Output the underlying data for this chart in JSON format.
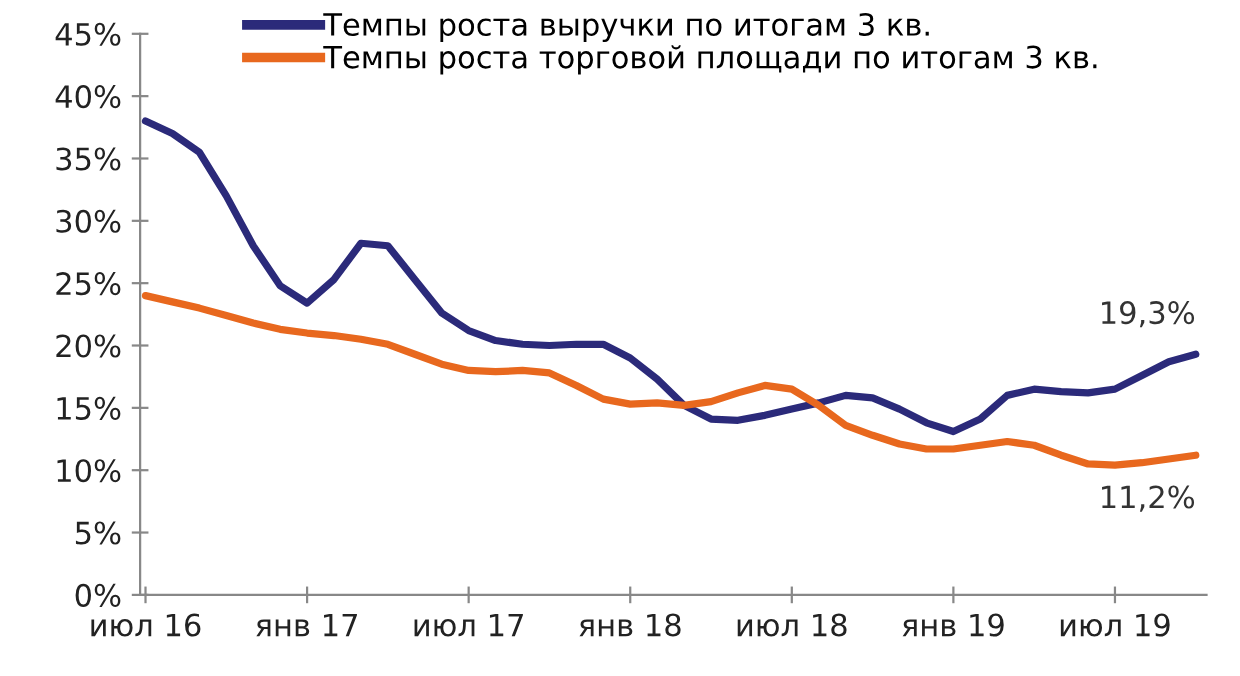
{
  "chart_data": {
    "type": "line",
    "categories": [
      "июл 16",
      null,
      null,
      null,
      null,
      null,
      "янв 17",
      null,
      null,
      null,
      null,
      null,
      "июл 17",
      null,
      null,
      null,
      null,
      null,
      "янв 18",
      null,
      null,
      null,
      null,
      null,
      "июл 18",
      null,
      null,
      null,
      null,
      null,
      "янв 19",
      null,
      null,
      null,
      null,
      null,
      "июл 19",
      null,
      null,
      null
    ],
    "series": [
      {
        "name": "Темпы роста выручки по итогам 3 кв.",
        "color": "#2b2a7a",
        "values": [
          38.0,
          37.0,
          35.5,
          32.0,
          28.0,
          24.8,
          23.4,
          25.3,
          28.2,
          28.0,
          25.3,
          22.6,
          21.2,
          20.4,
          20.1,
          20.0,
          20.1,
          20.1,
          19.0,
          17.3,
          15.2,
          14.1,
          14.0,
          14.4,
          14.9,
          15.4,
          16.0,
          15.8,
          14.9,
          13.8,
          13.1,
          14.1,
          16.0,
          16.5,
          16.3,
          16.2,
          16.5,
          17.6,
          18.7,
          19.3
        ],
        "value_labels": [
          null,
          null,
          null,
          null,
          null,
          null,
          null,
          null,
          null,
          null,
          null,
          null,
          null,
          null,
          null,
          null,
          null,
          null,
          null,
          null,
          null,
          null,
          null,
          null,
          null,
          null,
          null,
          null,
          null,
          null,
          null,
          null,
          null,
          null,
          null,
          null,
          null,
          null,
          null,
          "19,3%"
        ]
      },
      {
        "name": "Темпы роста торговой площади по итогам 3 кв.",
        "color": "#e8681e",
        "values": [
          24.0,
          23.5,
          23.0,
          22.4,
          21.8,
          21.3,
          21.0,
          20.8,
          20.5,
          20.1,
          19.3,
          18.5,
          18.0,
          17.9,
          18.0,
          17.8,
          16.8,
          15.7,
          15.3,
          15.4,
          15.2,
          15.5,
          16.2,
          16.8,
          16.5,
          15.2,
          13.6,
          12.8,
          12.1,
          11.7,
          11.7,
          12.0,
          12.3,
          12.0,
          11.2,
          10.5,
          10.4,
          10.6,
          10.9,
          11.2
        ],
        "value_labels": [
          null,
          null,
          null,
          null,
          null,
          null,
          null,
          null,
          null,
          null,
          null,
          null,
          null,
          null,
          null,
          null,
          null,
          null,
          null,
          null,
          null,
          null,
          null,
          null,
          null,
          null,
          null,
          null,
          null,
          null,
          null,
          null,
          null,
          null,
          null,
          null,
          null,
          null,
          null,
          "11,2%"
        ]
      }
    ],
    "ylim": [
      0,
      45
    ],
    "yticks": [
      {
        "value": 0,
        "label": "0%"
      },
      {
        "value": 5,
        "label": "5%"
      },
      {
        "value": 10,
        "label": "10%"
      },
      {
        "value": 15,
        "label": "15%"
      },
      {
        "value": 20,
        "label": "20%"
      },
      {
        "value": 25,
        "label": "25%"
      },
      {
        "value": 30,
        "label": "30%"
      },
      {
        "value": 35,
        "label": "35%"
      },
      {
        "value": 40,
        "label": "40%"
      },
      {
        "value": 45,
        "label": "45%"
      }
    ],
    "grid": false,
    "legend": "top",
    "marker": "none",
    "line_style": "solid"
  }
}
